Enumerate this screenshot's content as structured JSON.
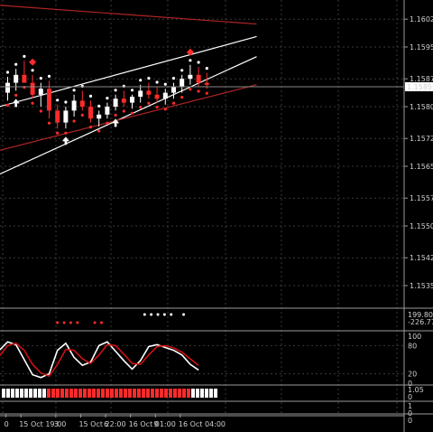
{
  "colors": {
    "background": "#000000",
    "grid": "#3a3a3a",
    "bull_candle": "#ffffff",
    "bear_candle": "#ff2b2b",
    "axis_text": "#cfcfcf",
    "trend_white": "#ffffff",
    "trend_red": "#b02424",
    "stoch_main": "#ffffff",
    "stoch_signal": "#d01010",
    "price_box_bg": "#ffffff",
    "price_box_text": "#000000"
  },
  "chart_data": [
    {
      "type": "candlestick",
      "panel": "main",
      "current_price": "1.1585",
      "y_ticks": [
        "1.1602",
        "1.1595",
        "1.1587",
        "1.1580",
        "1.1572",
        "1.1565",
        "1.1557",
        "1.1550",
        "1.1542",
        "1.1535"
      ],
      "ylim": [
        1.153,
        1.1605
      ],
      "candles": [
        {
          "i": 0,
          "o": 1.15835,
          "h": 1.15875,
          "l": 1.15815,
          "c": 1.1586
        },
        {
          "i": 1,
          "o": 1.1586,
          "h": 1.15895,
          "l": 1.1584,
          "c": 1.1588
        },
        {
          "i": 2,
          "o": 1.1588,
          "h": 1.15915,
          "l": 1.1586,
          "c": 1.1586
        },
        {
          "i": 3,
          "o": 1.1586,
          "h": 1.1588,
          "l": 1.1582,
          "c": 1.1583
        },
        {
          "i": 4,
          "o": 1.1583,
          "h": 1.1586,
          "l": 1.158,
          "c": 1.15845
        },
        {
          "i": 5,
          "o": 1.15845,
          "h": 1.15865,
          "l": 1.1577,
          "c": 1.1579
        },
        {
          "i": 6,
          "o": 1.1579,
          "h": 1.15805,
          "l": 1.15745,
          "c": 1.1576
        },
        {
          "i": 7,
          "o": 1.1576,
          "h": 1.158,
          "l": 1.15745,
          "c": 1.1579
        },
        {
          "i": 8,
          "o": 1.1579,
          "h": 1.1583,
          "l": 1.15775,
          "c": 1.15815
        },
        {
          "i": 9,
          "o": 1.15815,
          "h": 1.1584,
          "l": 1.1579,
          "c": 1.158
        },
        {
          "i": 10,
          "o": 1.158,
          "h": 1.15815,
          "l": 1.1576,
          "c": 1.1577
        },
        {
          "i": 11,
          "o": 1.1577,
          "h": 1.1579,
          "l": 1.1575,
          "c": 1.1578
        },
        {
          "i": 12,
          "o": 1.1578,
          "h": 1.1581,
          "l": 1.1577,
          "c": 1.158
        },
        {
          "i": 13,
          "o": 1.158,
          "h": 1.1583,
          "l": 1.1579,
          "c": 1.1582
        },
        {
          "i": 14,
          "o": 1.1582,
          "h": 1.1584,
          "l": 1.158,
          "c": 1.1581
        },
        {
          "i": 15,
          "o": 1.1581,
          "h": 1.1583,
          "l": 1.15795,
          "c": 1.15825
        },
        {
          "i": 16,
          "o": 1.15825,
          "h": 1.15855,
          "l": 1.1581,
          "c": 1.1584
        },
        {
          "i": 17,
          "o": 1.1584,
          "h": 1.1586,
          "l": 1.1582,
          "c": 1.1583
        },
        {
          "i": 18,
          "o": 1.1583,
          "h": 1.1585,
          "l": 1.1581,
          "c": 1.1582
        },
        {
          "i": 19,
          "o": 1.1582,
          "h": 1.15845,
          "l": 1.15805,
          "c": 1.15835
        },
        {
          "i": 20,
          "o": 1.15835,
          "h": 1.1586,
          "l": 1.1582,
          "c": 1.1585
        },
        {
          "i": 21,
          "o": 1.1585,
          "h": 1.1588,
          "l": 1.15835,
          "c": 1.1587
        },
        {
          "i": 22,
          "o": 1.1587,
          "h": 1.15905,
          "l": 1.15855,
          "c": 1.1588
        },
        {
          "i": 23,
          "o": 1.1588,
          "h": 1.159,
          "l": 1.1585,
          "c": 1.1586
        },
        {
          "i": 24,
          "o": 1.1586,
          "h": 1.15885,
          "l": 1.15845,
          "c": 1.15855
        }
      ],
      "trend_lines": [
        {
          "color": "trend_red",
          "from": [
            -1,
            1.16055
          ],
          "to": [
            30,
            1.16025
          ]
        },
        {
          "color": "trend_white",
          "from": [
            -1,
            1.158
          ],
          "to": [
            30,
            1.15912
          ]
        },
        {
          "color": "trend_white",
          "from": [
            -1,
            1.1563
          ],
          "to": [
            30,
            1.15818
          ]
        },
        {
          "color": "trend_red",
          "from": [
            -1,
            1.1569
          ],
          "to": [
            30,
            1.15795
          ]
        }
      ]
    },
    {
      "type": "line",
      "panel": "oscillator",
      "y_ticks": [
        "100",
        "80",
        "20",
        "0"
      ],
      "ylim": [
        0,
        100
      ],
      "series": [
        {
          "color": "stoch_main",
          "values": [
            70,
            88,
            82,
            50,
            18,
            12,
            20,
            70,
            85,
            55,
            38,
            45,
            80,
            88,
            68,
            48,
            30,
            48,
            78,
            82,
            76,
            70,
            60,
            40,
            28
          ]
        },
        {
          "color": "stoch_signal",
          "values": [
            58,
            80,
            85,
            70,
            40,
            22,
            15,
            40,
            72,
            70,
            52,
            42,
            60,
            82,
            80,
            62,
            42,
            40,
            60,
            78,
            80,
            75,
            66,
            52,
            38
          ]
        }
      ]
    }
  ],
  "sub_panels": {
    "dots_panel_labels": [
      "199.804",
      "-226.77"
    ],
    "bar_panel_labels": [
      "1.05",
      "0"
    ],
    "bottom_labels": [
      "1",
      "0",
      "0"
    ]
  },
  "x_axis": {
    "labels": [
      {
        "text": "0",
        "i": -0.2
      },
      {
        "text": "15 Oct 19:00",
        "i": 1.6
      },
      {
        "text": "3",
        "i": 5.8
      },
      {
        "text": "15 Oct 22:00",
        "i": 8.8
      },
      {
        "text": "6",
        "i": 11.8
      },
      {
        "text": "16 Oct 01:00",
        "i": 14.8
      },
      {
        "text": "9",
        "i": 17.8
      },
      {
        "text": "16 Oct 04:00",
        "i": 20.8
      }
    ]
  }
}
